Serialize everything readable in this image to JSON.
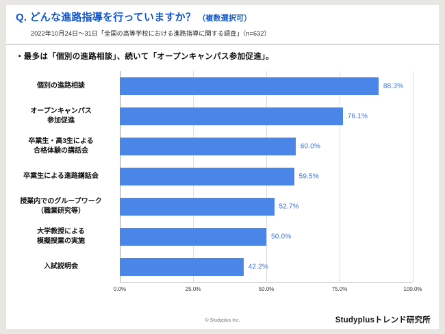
{
  "header": {
    "title_main": "Q. どんな進路指導を行っていますか？",
    "title_suffix": "（複数選択可）",
    "subtitle": "2022年10月24日～31日「全国の高等学校における進路指導に関する調査」（n=632）"
  },
  "note": "・最多は「個別の進路相談」、続いて「オープンキャンパス参加促進」。",
  "footer": {
    "copyright": "© Studyplus Inc.",
    "brand": "Studyplusトレンド研究所"
  },
  "colors": {
    "title_blue": "#1155cc",
    "bar_blue": "#4a86e8",
    "value_blue": "#3d6fe0"
  },
  "chart_data": {
    "type": "bar",
    "orientation": "horizontal",
    "categories": [
      "個別の進路相談",
      "オープンキャンパス\n参加促進",
      "卒業生・高3生による\n合格体験の講話会",
      "卒業生による進路講話会",
      "授業内でのグループワーク\n（職業研究等）",
      "大学教授による\n模擬授業の実施",
      "入試説明会"
    ],
    "values": [
      88.3,
      76.1,
      60.0,
      59.5,
      52.7,
      50.0,
      42.2
    ],
    "value_labels": [
      "88.3%",
      "76.1%",
      "60.0%",
      "59.5%",
      "52.7%",
      "50.0%",
      "42.2%"
    ],
    "x_ticks": [
      "0.0%",
      "25.0%",
      "50.0%",
      "75.0%",
      "100.0%"
    ],
    "xlim": [
      0,
      100
    ],
    "grid": true,
    "legend": false,
    "bar_color": "#4a86e8",
    "value_label_color": "#3d6fe0"
  }
}
